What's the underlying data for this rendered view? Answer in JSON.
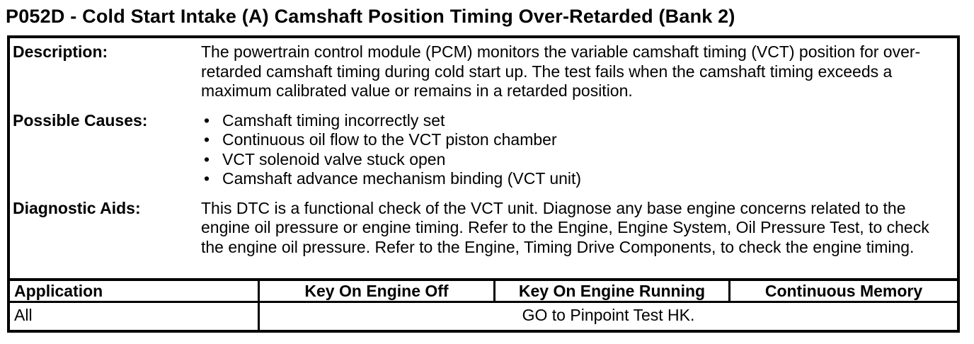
{
  "page_title": "P052D - Cold Start Intake (A) Camshaft Position Timing Over-Retarded (Bank 2)",
  "info_rows": {
    "description": {
      "label": "Description:",
      "text": "The powertrain control module (PCM) monitors the variable camshaft timing (VCT) position for over-retarded camshaft timing during cold start up. The test fails when the camshaft timing exceeds a maximum calibrated value or remains in a retarded position."
    },
    "possible_causes": {
      "label": "Possible Causes:",
      "items": [
        "Camshaft timing incorrectly set",
        "Continuous oil flow to the VCT piston chamber",
        "VCT solenoid valve stuck open",
        "Camshaft advance mechanism binding (VCT unit)"
      ]
    },
    "diagnostic_aids": {
      "label": "Diagnostic Aids:",
      "text": "This DTC is a functional check of the VCT unit. Diagnose any base engine concerns related to the engine oil pressure or engine timing. Refer to the Engine, Engine System, Oil Pressure Test, to check the engine oil pressure. Refer to the Engine, Timing Drive Components, to check the engine timing."
    }
  },
  "action_table": {
    "headers": [
      "Application",
      "Key On Engine Off",
      "Key On Engine Running",
      "Continuous Memory"
    ],
    "rows": [
      {
        "application": "All",
        "action": "GO to Pinpoint Test HK."
      }
    ]
  },
  "colors": {
    "text": "#000000",
    "background": "#ffffff",
    "border": "#000000"
  }
}
